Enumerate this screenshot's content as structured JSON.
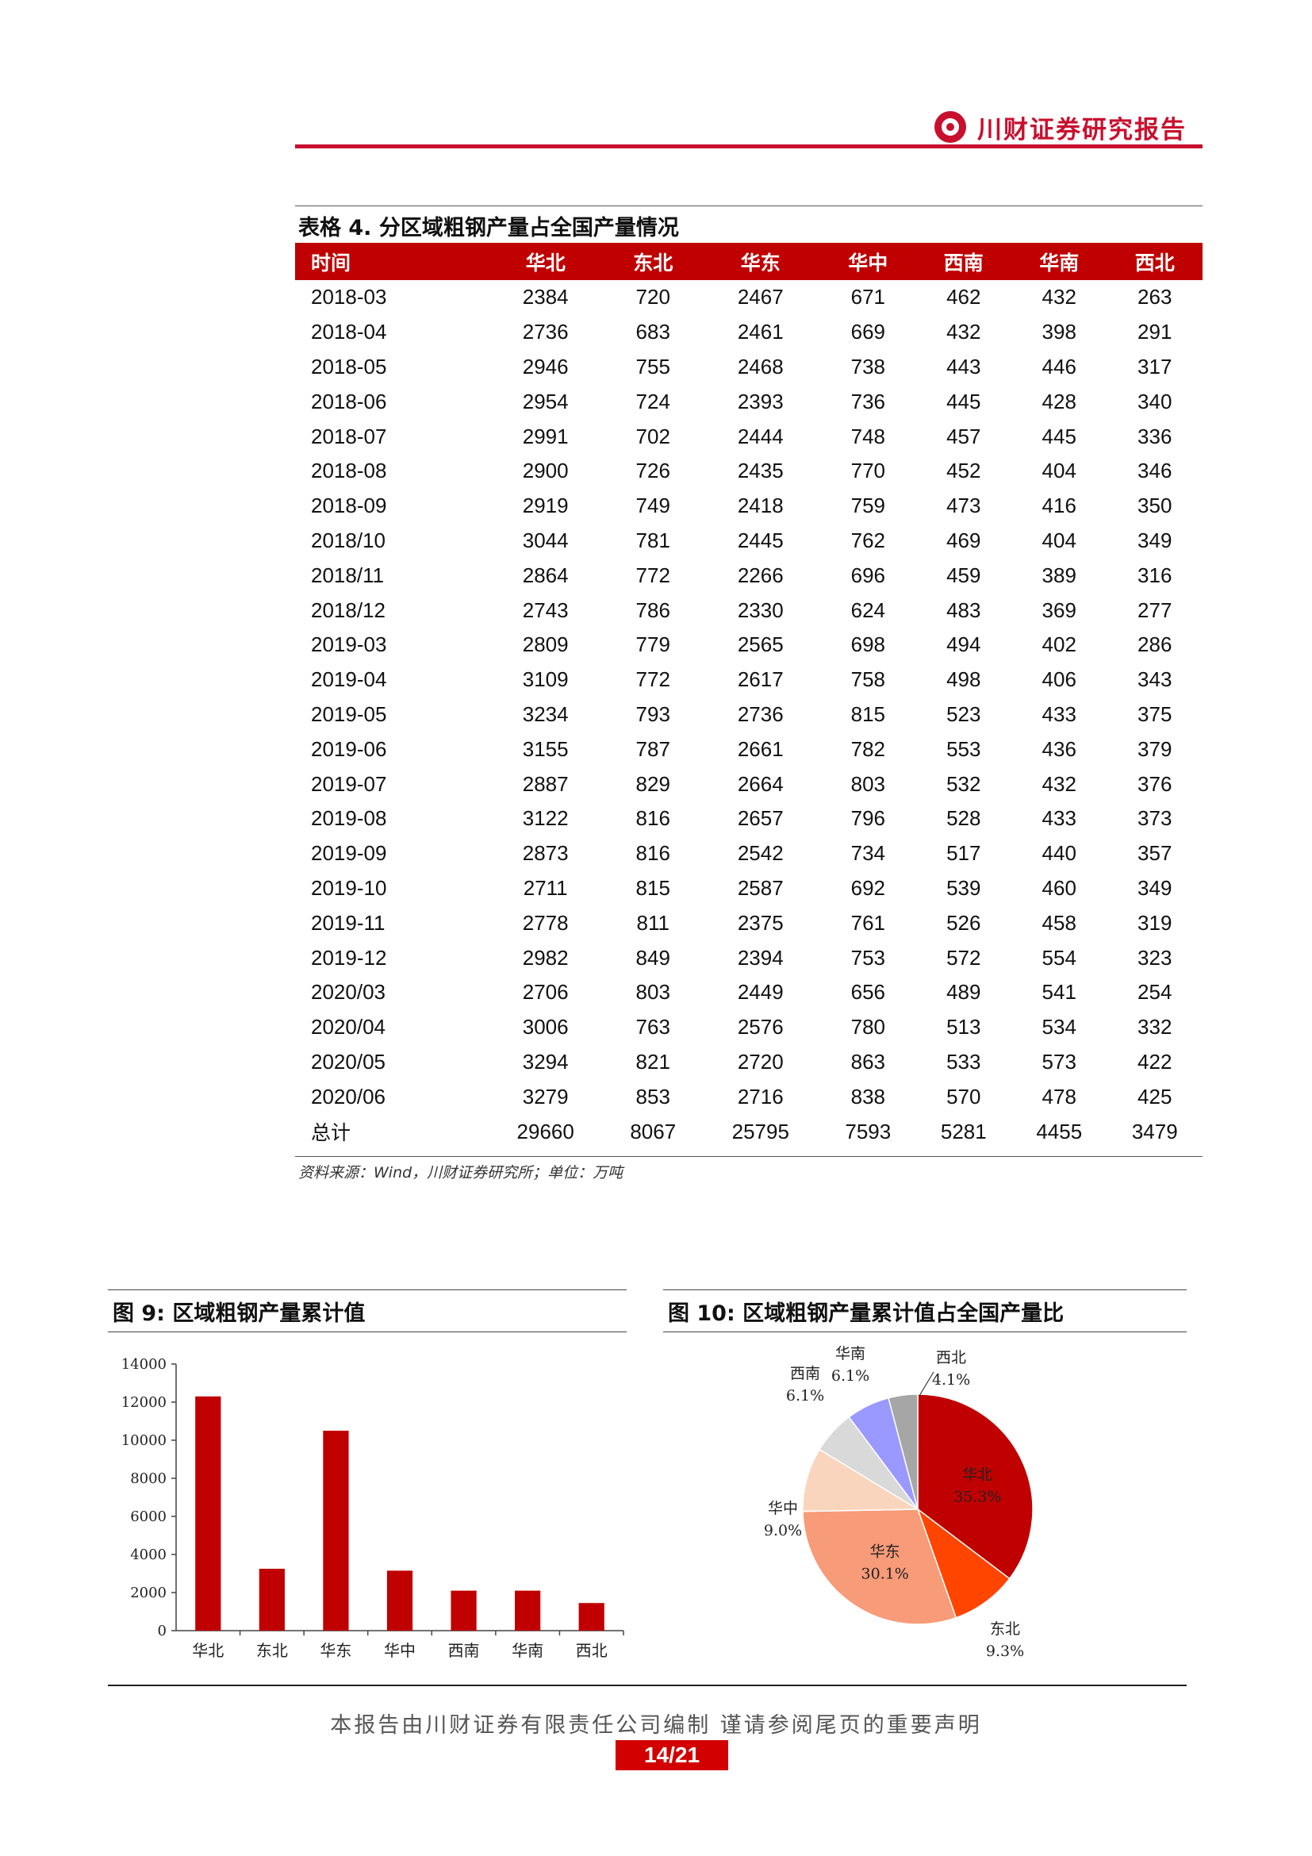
{
  "header": {
    "title": "川财证券研究报告"
  },
  "table": {
    "caption": "表格 4. 分区域粗钢产量占全国产量情况",
    "columns": [
      "时间",
      "华北",
      "东北",
      "华东",
      "华中",
      "西南",
      "华南",
      "西北"
    ],
    "rows": [
      [
        "2018-03",
        "2384",
        "720",
        "2467",
        "671",
        "462",
        "432",
        "263"
      ],
      [
        "2018-04",
        "2736",
        "683",
        "2461",
        "669",
        "432",
        "398",
        "291"
      ],
      [
        "2018-05",
        "2946",
        "755",
        "2468",
        "738",
        "443",
        "446",
        "317"
      ],
      [
        "2018-06",
        "2954",
        "724",
        "2393",
        "736",
        "445",
        "428",
        "340"
      ],
      [
        "2018-07",
        "2991",
        "702",
        "2444",
        "748",
        "457",
        "445",
        "336"
      ],
      [
        "2018-08",
        "2900",
        "726",
        "2435",
        "770",
        "452",
        "404",
        "346"
      ],
      [
        "2018-09",
        "2919",
        "749",
        "2418",
        "759",
        "473",
        "416",
        "350"
      ],
      [
        "2018/10",
        "3044",
        "781",
        "2445",
        "762",
        "469",
        "404",
        "349"
      ],
      [
        "2018/11",
        "2864",
        "772",
        "2266",
        "696",
        "459",
        "389",
        "316"
      ],
      [
        "2018/12",
        "2743",
        "786",
        "2330",
        "624",
        "483",
        "369",
        "277"
      ],
      [
        "2019-03",
        "2809",
        "779",
        "2565",
        "698",
        "494",
        "402",
        "286"
      ],
      [
        "2019-04",
        "3109",
        "772",
        "2617",
        "758",
        "498",
        "406",
        "343"
      ],
      [
        "2019-05",
        "3234",
        "793",
        "2736",
        "815",
        "523",
        "433",
        "375"
      ],
      [
        "2019-06",
        "3155",
        "787",
        "2661",
        "782",
        "553",
        "436",
        "379"
      ],
      [
        "2019-07",
        "2887",
        "829",
        "2664",
        "803",
        "532",
        "432",
        "376"
      ],
      [
        "2019-08",
        "3122",
        "816",
        "2657",
        "796",
        "528",
        "433",
        "373"
      ],
      [
        "2019-09",
        "2873",
        "816",
        "2542",
        "734",
        "517",
        "440",
        "357"
      ],
      [
        "2019-10",
        "2711",
        "815",
        "2587",
        "692",
        "539",
        "460",
        "349"
      ],
      [
        "2019-11",
        "2778",
        "811",
        "2375",
        "761",
        "526",
        "458",
        "319"
      ],
      [
        "2019-12",
        "2982",
        "849",
        "2394",
        "753",
        "572",
        "554",
        "323"
      ],
      [
        "2020/03",
        "2706",
        "803",
        "2449",
        "656",
        "489",
        "541",
        "254"
      ],
      [
        "2020/04",
        "3006",
        "763",
        "2576",
        "780",
        "513",
        "534",
        "332"
      ],
      [
        "2020/05",
        "3294",
        "821",
        "2720",
        "863",
        "533",
        "573",
        "422"
      ],
      [
        "2020/06",
        "3279",
        "853",
        "2716",
        "838",
        "570",
        "478",
        "425"
      ]
    ],
    "total": [
      "总计",
      "29660",
      "8067",
      "25795",
      "7593",
      "5281",
      "4455",
      "3479"
    ],
    "source": "资料来源：Wind，川财证券研究所；单位：万吨"
  },
  "chart_data": [
    {
      "type": "bar",
      "title": "图 9: 区域粗钢产量累计值",
      "categories": [
        "华北",
        "东北",
        "华东",
        "华中",
        "西南",
        "华南",
        "西北"
      ],
      "values": [
        12300,
        3250,
        10500,
        3150,
        2100,
        2100,
        1450
      ],
      "ylim": [
        0,
        14000
      ],
      "yticks": [
        "0",
        "2000",
        "4000",
        "6000",
        "8000",
        "10000",
        "12000",
        "14000"
      ],
      "color": "#c00000",
      "grid": false,
      "xlabel": "",
      "ylabel": ""
    },
    {
      "type": "pie",
      "title": "图 10: 区域粗钢产量累计值占全国产量比",
      "slices": [
        {
          "name": "华北",
          "value": 35.3,
          "label": "35.3%",
          "color": "#c00000"
        },
        {
          "name": "东北",
          "value": 9.3,
          "label": "9.3%",
          "color": "#ff4500"
        },
        {
          "name": "华东",
          "value": 30.1,
          "label": "30.1%",
          "color": "#f79b78"
        },
        {
          "name": "华中",
          "value": 9.0,
          "label": "9.0%",
          "color": "#fad5bd"
        },
        {
          "name": "西南",
          "value": 6.1,
          "label": "6.1%",
          "color": "#d9d9d9"
        },
        {
          "name": "华南",
          "value": 6.1,
          "label": "6.1%",
          "color": "#9999ff"
        },
        {
          "name": "西北",
          "value": 4.1,
          "label": "4.1%",
          "color": "#a6a6a6"
        }
      ]
    }
  ],
  "footer": {
    "text": "本报告由川财证券有限责任公司编制 谨请参阅尾页的重要声明",
    "page": "14/21"
  }
}
